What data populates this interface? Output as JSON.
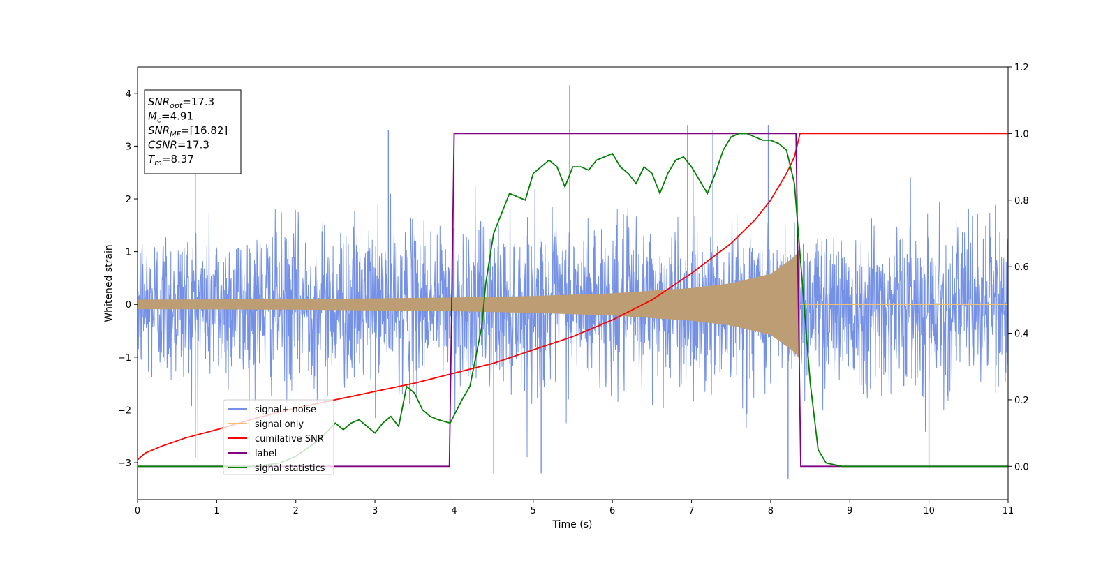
{
  "chart_data": {
    "type": "line",
    "xlabel": "Time (s)",
    "ylabel": "Whitened strain",
    "xlim": [
      0,
      11
    ],
    "ylim": [
      -3.7,
      4.5
    ],
    "y2lim": [
      -0.1,
      1.2
    ],
    "x_ticks": [
      "0",
      "1",
      "2",
      "3",
      "4",
      "5",
      "6",
      "7",
      "8",
      "9",
      "10",
      "11"
    ],
    "y_ticks": [
      "−3",
      "−2",
      "−1",
      "0",
      "1",
      "2",
      "3",
      "4"
    ],
    "y2_ticks": [
      "0.0",
      "0.2",
      "0.4",
      "0.6",
      "0.8",
      "1.0",
      "1.2"
    ],
    "grid": false,
    "legend_position": "lower-left",
    "info_box": [
      {
        "main": "SNR",
        "sub": "opt",
        "value": "=17.3"
      },
      {
        "main": "M",
        "sub": "c",
        "value": "=4.91"
      },
      {
        "main": "SNR",
        "sub": "MF",
        "value": "=[16.82]"
      },
      {
        "main": "CSNR",
        "sub": "",
        "value": "=17.3"
      },
      {
        "main": "T",
        "sub": "m",
        "value": "=8.37"
      }
    ],
    "series": [
      {
        "name": "signal+ noise",
        "color": "#7591e6",
        "axis": "left",
        "kind": "noise",
        "noise_std": 0.75,
        "x_range": [
          0,
          11
        ],
        "peak_spikes": [
          {
            "x": 0.73,
            "y": 2.8
          },
          {
            "x": 0.73,
            "y": -2.9
          },
          {
            "x": 3.17,
            "y": 3.3
          },
          {
            "x": 4.0,
            "y": 3.2
          },
          {
            "x": 4.5,
            "y": -3.2
          },
          {
            "x": 5.1,
            "y": -3.2
          },
          {
            "x": 5.46,
            "y": 4.15
          },
          {
            "x": 6.95,
            "y": 3.4
          },
          {
            "x": 7.27,
            "y": 3.3
          },
          {
            "x": 7.97,
            "y": 3.4
          },
          {
            "x": 8.22,
            "y": -3.3
          },
          {
            "x": 10.0,
            "y": -3.1
          }
        ]
      },
      {
        "name": "signal only",
        "color": "#f5be6e",
        "fill_color": "#bc9d74",
        "axis": "left",
        "kind": "chirp_envelope",
        "x_range": [
          0,
          8.37
        ],
        "envelope": [
          [
            0,
            0.09
          ],
          [
            2,
            0.1
          ],
          [
            4,
            0.13
          ],
          [
            5,
            0.16
          ],
          [
            6,
            0.21
          ],
          [
            7,
            0.31
          ],
          [
            7.5,
            0.4
          ],
          [
            8,
            0.58
          ],
          [
            8.3,
            0.9
          ],
          [
            8.37,
            1.05
          ]
        ],
        "flat_after": [
          8.37,
          11,
          0.0
        ]
      },
      {
        "name": "cumilative SNR",
        "color": "#ff0000",
        "axis": "right",
        "x": [
          0,
          0.1,
          0.3,
          0.6,
          1,
          1.5,
          2,
          2.5,
          3,
          3.5,
          4,
          4.5,
          5,
          5.5,
          6,
          6.5,
          7,
          7.5,
          7.8,
          8,
          8.1,
          8.2,
          8.3,
          8.37,
          11
        ],
        "y": [
          0.02,
          0.04,
          0.06,
          0.085,
          0.11,
          0.145,
          0.175,
          0.2,
          0.225,
          0.25,
          0.28,
          0.31,
          0.35,
          0.39,
          0.44,
          0.5,
          0.58,
          0.67,
          0.74,
          0.8,
          0.84,
          0.88,
          0.93,
          1.0,
          1.0
        ]
      },
      {
        "name": "label",
        "color": "#800080",
        "axis": "right",
        "x": [
          0,
          3.94,
          4.0,
          8.32,
          8.38,
          11
        ],
        "y": [
          0.0,
          0.0,
          1.0,
          1.0,
          0.0,
          0.0
        ]
      },
      {
        "name": "signal statistics",
        "color": "#008000",
        "axis": "right",
        "x": [
          0,
          1,
          1.5,
          1.8,
          2.0,
          2.3,
          2.5,
          2.6,
          2.7,
          2.8,
          2.9,
          3.0,
          3.1,
          3.2,
          3.3,
          3.4,
          3.5,
          3.6,
          3.7,
          3.8,
          3.95,
          4.1,
          4.2,
          4.25,
          4.3,
          4.35,
          4.4,
          4.5,
          4.6,
          4.7,
          4.8,
          4.9,
          5.0,
          5.1,
          5.2,
          5.3,
          5.4,
          5.5,
          5.6,
          5.7,
          5.8,
          5.9,
          6.0,
          6.1,
          6.2,
          6.3,
          6.4,
          6.5,
          6.6,
          6.7,
          6.8,
          6.9,
          7.0,
          7.1,
          7.2,
          7.3,
          7.4,
          7.5,
          7.6,
          7.7,
          7.8,
          7.9,
          8.0,
          8.1,
          8.2,
          8.3,
          8.4,
          8.5,
          8.6,
          8.7,
          8.9,
          11
        ],
        "y": [
          0.0,
          0.0,
          0.0,
          0.01,
          0.03,
          0.08,
          0.13,
          0.11,
          0.13,
          0.14,
          0.12,
          0.1,
          0.13,
          0.15,
          0.12,
          0.24,
          0.22,
          0.17,
          0.15,
          0.14,
          0.13,
          0.2,
          0.24,
          0.3,
          0.36,
          0.42,
          0.55,
          0.7,
          0.76,
          0.82,
          0.81,
          0.8,
          0.88,
          0.9,
          0.92,
          0.9,
          0.84,
          0.9,
          0.9,
          0.89,
          0.92,
          0.93,
          0.94,
          0.9,
          0.88,
          0.85,
          0.9,
          0.88,
          0.82,
          0.88,
          0.92,
          0.93,
          0.9,
          0.86,
          0.82,
          0.88,
          0.95,
          0.99,
          1.0,
          1.0,
          0.99,
          0.98,
          0.98,
          0.97,
          0.95,
          0.85,
          0.55,
          0.25,
          0.05,
          0.01,
          0.0,
          0.0
        ]
      }
    ]
  }
}
